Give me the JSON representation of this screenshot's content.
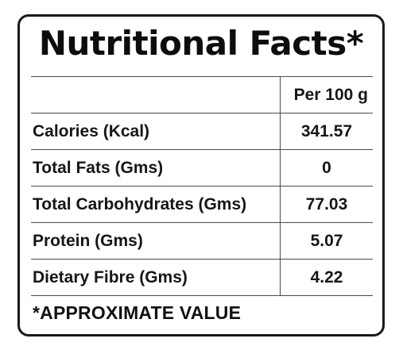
{
  "title": "Nutritional Facts*",
  "table": {
    "column_header": "Per 100 g",
    "rows": [
      {
        "nutrient": "Calories (Kcal)",
        "value": "341.57"
      },
      {
        "nutrient": "Total Fats (Gms)",
        "value": "0"
      },
      {
        "nutrient": "Total Carbohydrates (Gms)",
        "value": "77.03"
      },
      {
        "nutrient": "Protein (Gms)",
        "value": "5.07"
      },
      {
        "nutrient": "Dietary Fibre (Gms)",
        "value": "4.22"
      }
    ]
  },
  "footnote": "*APPROXIMATE VALUE"
}
